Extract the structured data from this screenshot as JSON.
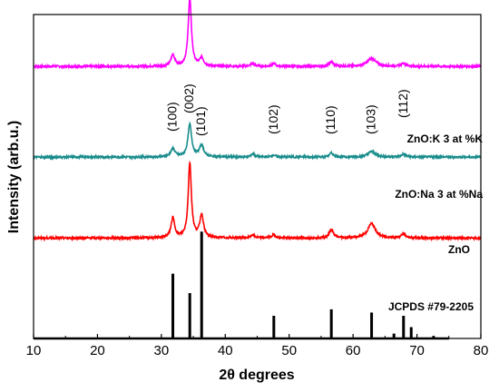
{
  "chart_data": {
    "type": "line",
    "xlabel": "2θ degrees",
    "ylabel": "Intensity (arb.u.)",
    "xlim": [
      10,
      80
    ],
    "x_ticks": [
      "10",
      "20",
      "30",
      "40",
      "50",
      "60",
      "70",
      "80"
    ],
    "y_tick_labels_shown": false,
    "grid": false,
    "series": [
      {
        "name": "ZnO:K 3 at %K",
        "color": "#ff00ff",
        "baseline": 0.84,
        "noise": 0.003,
        "peaks": [
          {
            "x": 31.8,
            "height": 0.035,
            "width": 0.35
          },
          {
            "x": 34.45,
            "height": 0.21,
            "width": 0.3
          },
          {
            "x": 36.3,
            "height": 0.025,
            "width": 0.35
          },
          {
            "x": 44.3,
            "height": 0.01,
            "width": 0.35
          },
          {
            "x": 47.6,
            "height": 0.008,
            "width": 0.35
          },
          {
            "x": 56.6,
            "height": 0.014,
            "width": 0.4
          },
          {
            "x": 62.9,
            "height": 0.024,
            "width": 0.8
          },
          {
            "x": 67.9,
            "height": 0.01,
            "width": 0.4
          }
        ]
      },
      {
        "name": "ZnO:Na 3 at %Na",
        "color": "#1a8c8c",
        "baseline": 0.56,
        "noise": 0.003,
        "peaks": [
          {
            "x": 31.8,
            "height": 0.025,
            "width": 0.4
          },
          {
            "x": 34.45,
            "height": 0.1,
            "width": 0.35
          },
          {
            "x": 36.3,
            "height": 0.035,
            "width": 0.4
          },
          {
            "x": 44.3,
            "height": 0.01,
            "width": 0.35
          },
          {
            "x": 47.6,
            "height": 0.006,
            "width": 0.35
          },
          {
            "x": 56.6,
            "height": 0.012,
            "width": 0.4
          },
          {
            "x": 62.9,
            "height": 0.017,
            "width": 0.7
          },
          {
            "x": 67.9,
            "height": 0.009,
            "width": 0.4
          }
        ]
      },
      {
        "name": "ZnO",
        "color": "#ff0000",
        "baseline": 0.31,
        "noise": 0.003,
        "peaks": [
          {
            "x": 31.8,
            "height": 0.06,
            "width": 0.35
          },
          {
            "x": 34.45,
            "height": 0.23,
            "width": 0.3
          },
          {
            "x": 36.3,
            "height": 0.07,
            "width": 0.35
          },
          {
            "x": 44.3,
            "height": 0.01,
            "width": 0.35
          },
          {
            "x": 47.6,
            "height": 0.01,
            "width": 0.35
          },
          {
            "x": 56.6,
            "height": 0.025,
            "width": 0.4
          },
          {
            "x": 62.9,
            "height": 0.045,
            "width": 0.7
          },
          {
            "x": 67.9,
            "height": 0.012,
            "width": 0.4
          }
        ]
      },
      {
        "name": "JCPDS #79-2205",
        "color": "#000000",
        "baseline": 0.0,
        "noise": 0,
        "x_range": [
          10,
          75
        ],
        "sticks": [
          {
            "x": 31.8,
            "height": 0.2
          },
          {
            "x": 34.45,
            "height": 0.14
          },
          {
            "x": 36.3,
            "height": 0.33
          },
          {
            "x": 47.6,
            "height": 0.07
          },
          {
            "x": 56.6,
            "height": 0.09
          },
          {
            "x": 62.9,
            "height": 0.08
          },
          {
            "x": 66.4,
            "height": 0.015
          },
          {
            "x": 67.9,
            "height": 0.07
          },
          {
            "x": 69.1,
            "height": 0.035
          },
          {
            "x": 72.6,
            "height": 0.008
          }
        ]
      }
    ],
    "peak_labels": [
      {
        "text": "(100)",
        "x": 31.8
      },
      {
        "text": "(002)",
        "x": 34.45
      },
      {
        "text": "(101)",
        "x": 36.3
      },
      {
        "text": "(102)",
        "x": 47.6
      },
      {
        "text": "(110)",
        "x": 56.6
      },
      {
        "text": "(103)",
        "x": 62.9
      },
      {
        "text": "(112)",
        "x": 67.9
      }
    ]
  }
}
